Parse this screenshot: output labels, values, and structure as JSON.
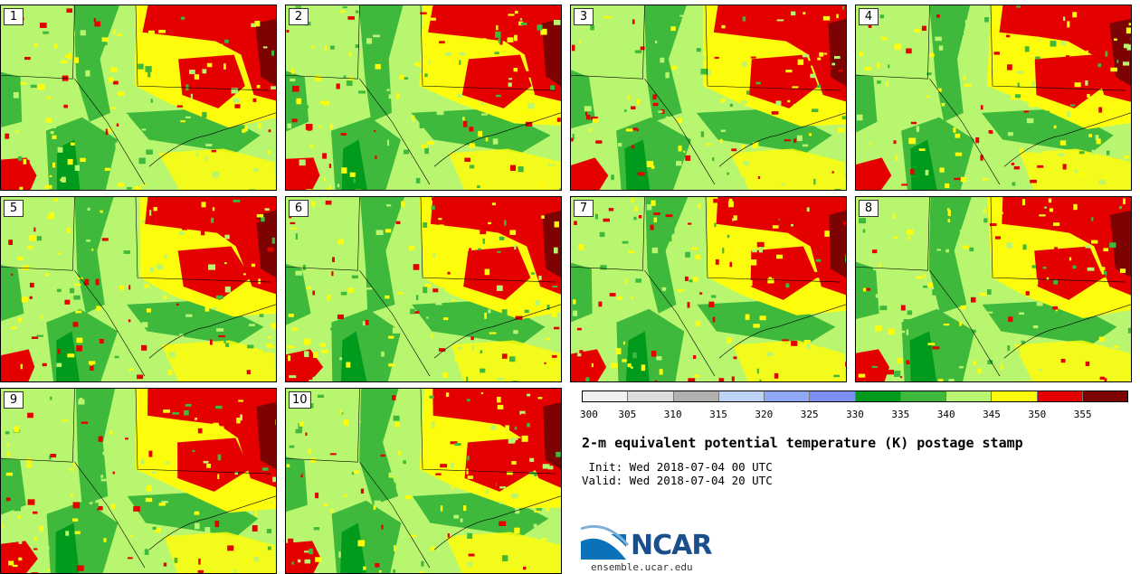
{
  "panels": [
    {
      "label": "1"
    },
    {
      "label": "2"
    },
    {
      "label": "3"
    },
    {
      "label": "4"
    },
    {
      "label": "5"
    },
    {
      "label": "6"
    },
    {
      "label": "7"
    },
    {
      "label": "8"
    },
    {
      "label": "9"
    },
    {
      "label": "10"
    }
  ],
  "colorbar": {
    "ticks": [
      "300",
      "305",
      "310",
      "315",
      "320",
      "325",
      "330",
      "335",
      "340",
      "345",
      "350",
      "355"
    ],
    "colors": [
      "#f0f0f0",
      "#dcdcdc",
      "#b0b0b0",
      "#bcd2f7",
      "#8ea8f5",
      "#7b90f2",
      "#009b1c",
      "#3fb93c",
      "#b9f670",
      "#fcfc0c",
      "#e50000",
      "#7d0303"
    ]
  },
  "title": "2-m equivalent potential temperature (K) postage stamp",
  "init": " Init: Wed 2018-07-04 00 UTC",
  "valid": "Valid: Wed 2018-07-04 20 UTC",
  "logo_text": "NCAR",
  "site": "ensemble.ucar.edu"
}
